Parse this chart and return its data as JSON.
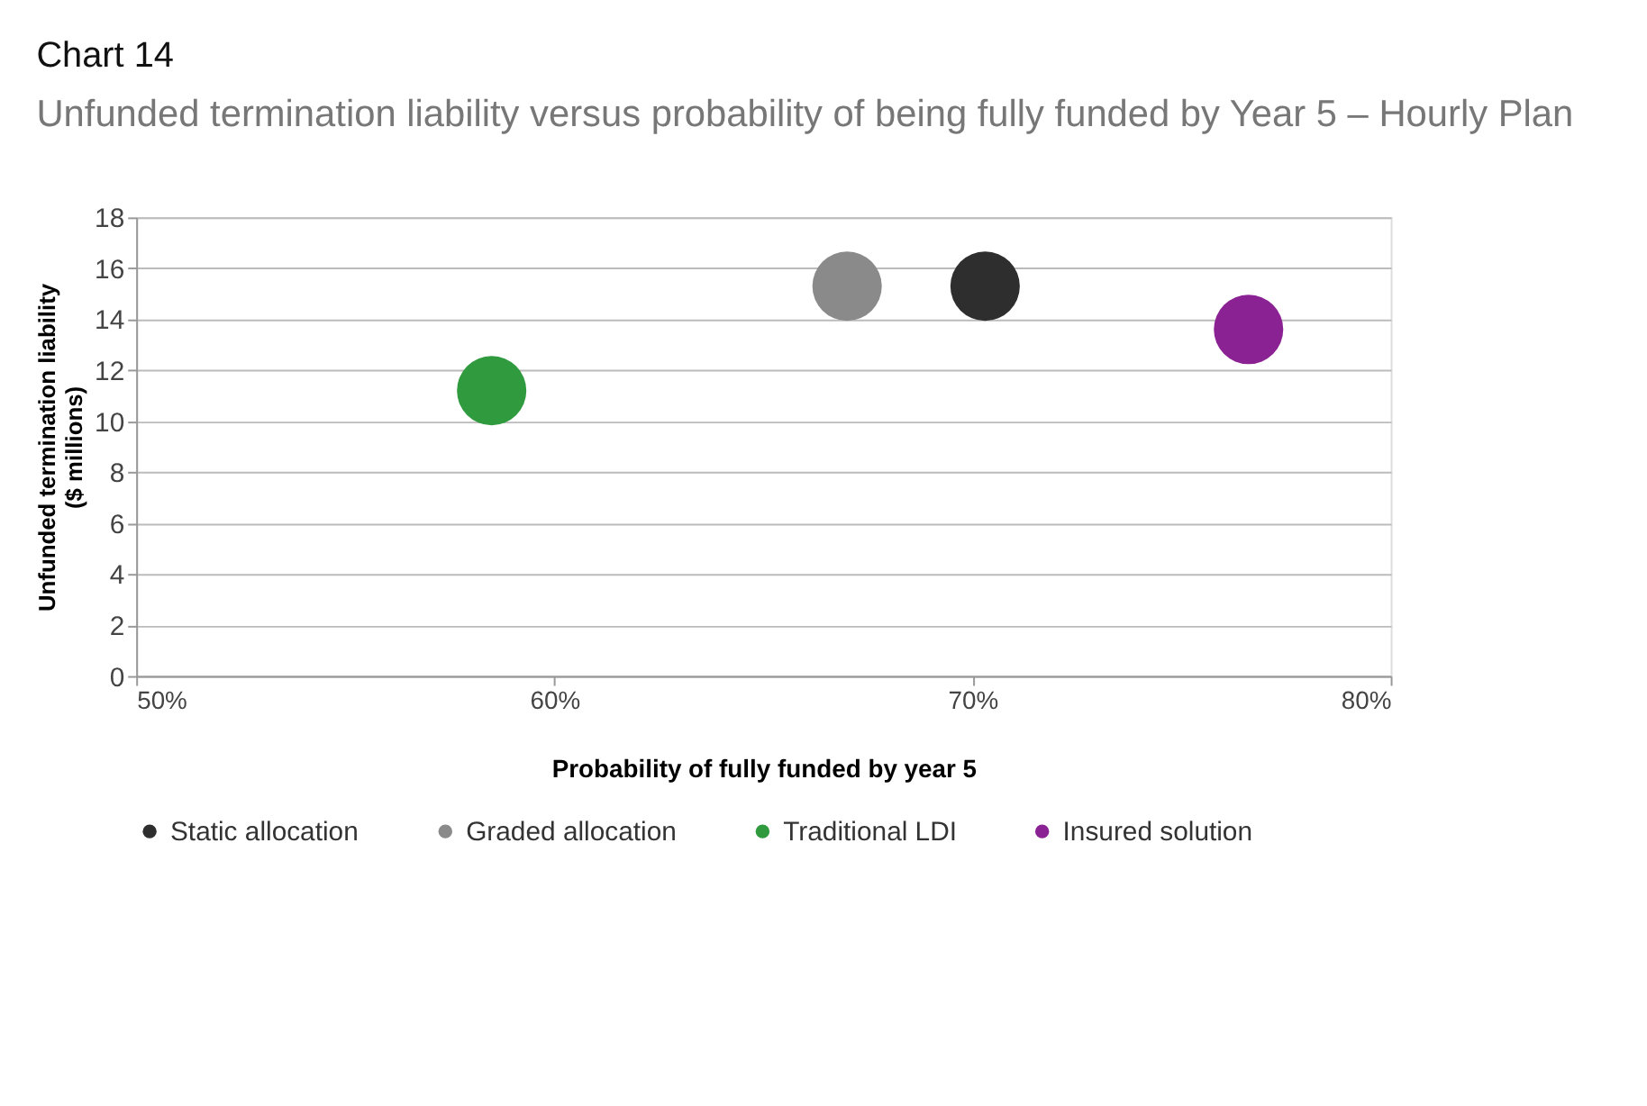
{
  "chart_data": {
    "type": "scatter",
    "title": "Chart 14",
    "subtitle": "Unfunded termination liability versus probability of being fully funded by Year 5 – Hourly Plan",
    "xlabel": "Probability of fully funded by year 5",
    "ylabel": "Unfunded termination liability ($ millions)",
    "xlim": [
      50,
      80
    ],
    "xticks": [
      {
        "value": 50,
        "label": "50%"
      },
      {
        "value": 60,
        "label": "60%"
      },
      {
        "value": 70,
        "label": "70%"
      },
      {
        "value": 80,
        "label": "80%"
      }
    ],
    "ylim": [
      0,
      18
    ],
    "yticks": [
      0,
      2,
      4,
      6,
      8,
      10,
      12,
      14,
      16,
      18
    ],
    "grid": "y",
    "legend": "bottom",
    "marker": "circle",
    "series": [
      {
        "name": "Static allocation",
        "color": "#2e2e2e",
        "x": [
          70.3
        ],
        "values": [
          15.3
        ]
      },
      {
        "name": "Graded allocation",
        "color": "#8a8a8a",
        "x": [
          67.0
        ],
        "values": [
          15.3
        ]
      },
      {
        "name": "Traditional LDI",
        "color": "#2f9a3e",
        "x": [
          58.5
        ],
        "values": [
          11.2
        ]
      },
      {
        "name": "Insured solution",
        "color": "#8b2293",
        "x": [
          76.6
        ],
        "values": [
          13.6
        ]
      }
    ]
  }
}
